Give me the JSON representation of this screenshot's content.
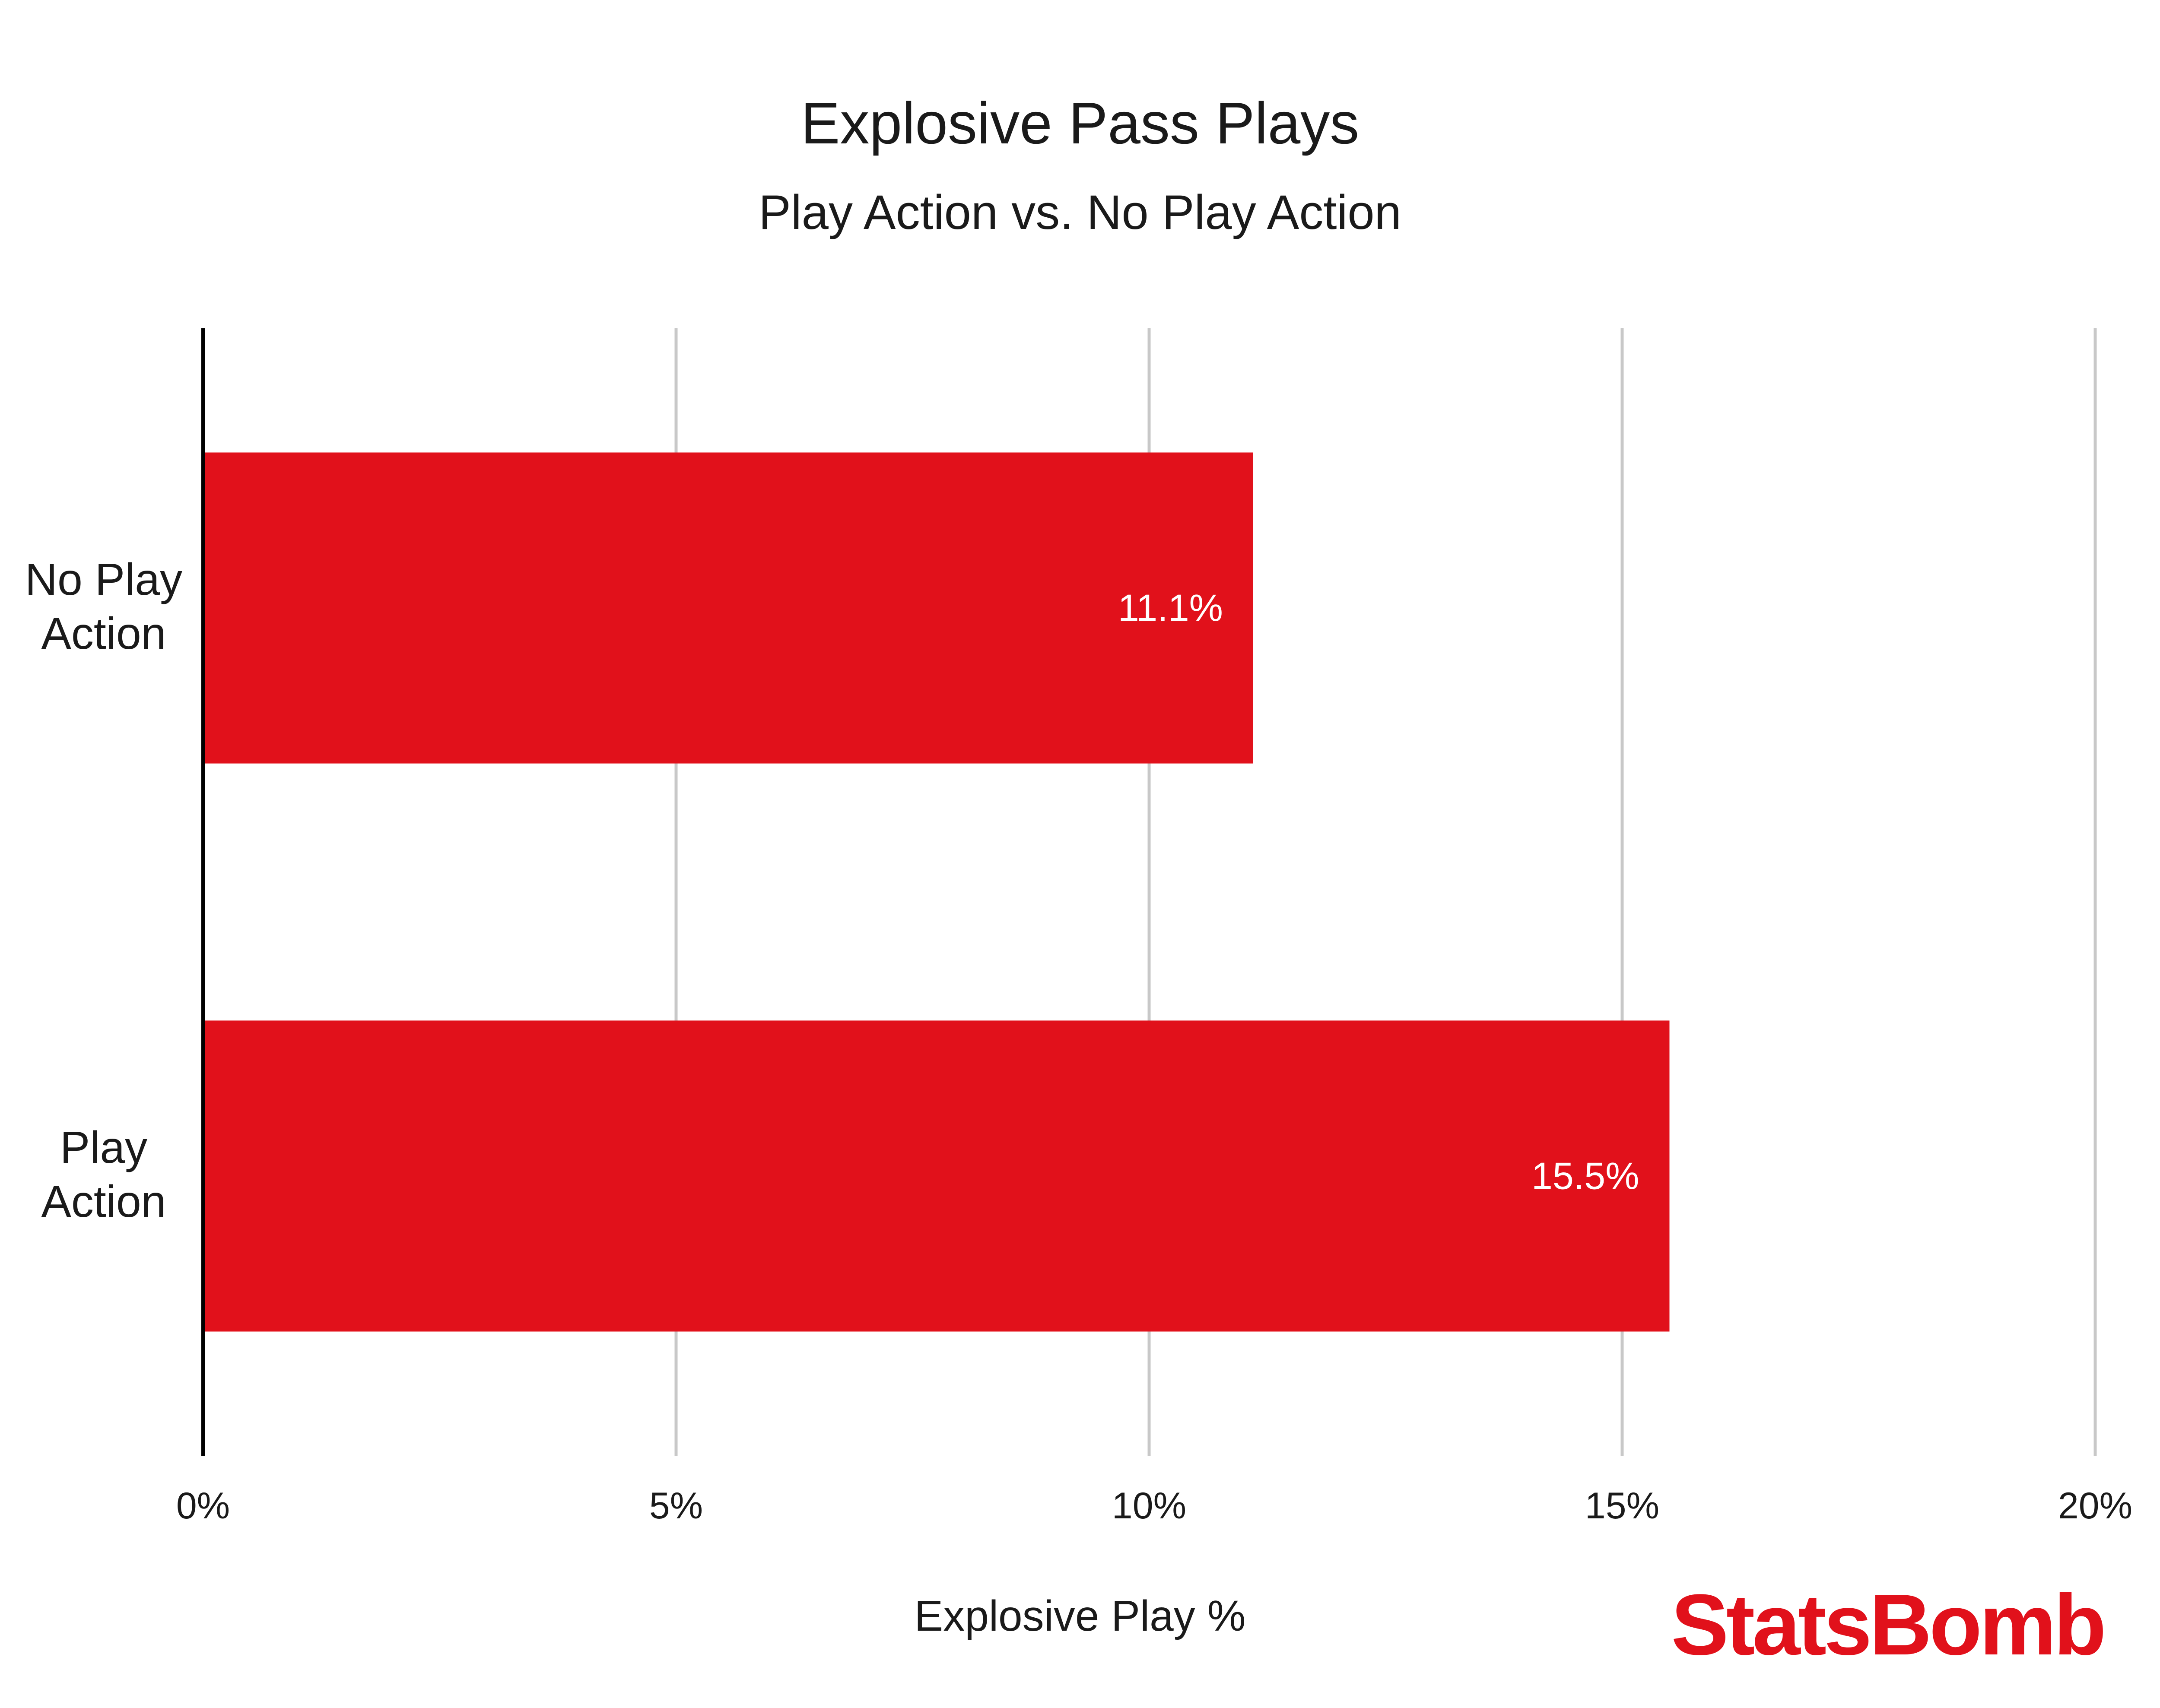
{
  "chart_data": {
    "type": "bar",
    "orientation": "horizontal",
    "title": "Explosive Pass Plays",
    "subtitle": "Play Action vs. No Play Action",
    "categories": [
      [
        "No Play",
        "Action"
      ],
      [
        "Play",
        "Action"
      ]
    ],
    "values": [
      11.1,
      15.5
    ],
    "value_labels": [
      "11.1%",
      "15.5%"
    ],
    "xlabel": "Explosive Play %",
    "ylabel": "",
    "xlim": [
      0,
      20
    ],
    "x_ticks": [
      0,
      5,
      10,
      15,
      20
    ],
    "x_tick_labels": [
      "0%",
      "5%",
      "10%",
      "15%",
      "20%"
    ],
    "grid": "vertical",
    "bar_color": "#e1111b",
    "grid_color": "#c8c8c8",
    "axis_color": "#000000"
  },
  "brand": {
    "logo_text": "StatsBomb",
    "color": "#e1111b"
  }
}
